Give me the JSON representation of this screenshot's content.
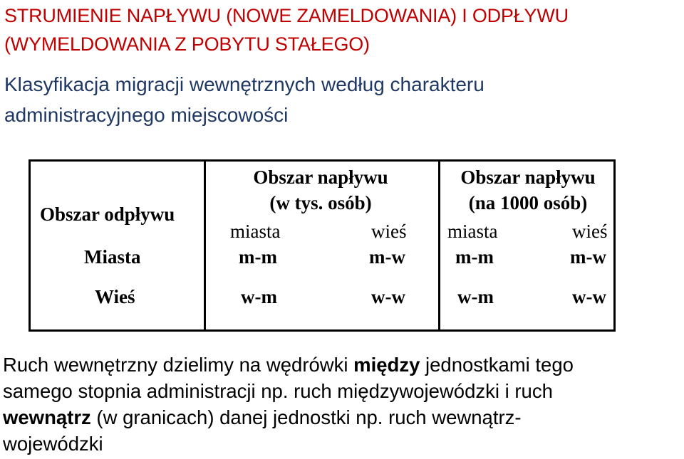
{
  "title": {
    "line1": "STRUMIENIE NAPŁYWU (NOWE ZAMELDOWANIA) I ODPŁYWU",
    "line2": "(WYMELDOWANIA Z POBYTU STAŁEGO)"
  },
  "subtitle": {
    "line1": "Klasyfikacja migracji wewnętrznych według charakteru",
    "line2": "administracyjnego miejscowości"
  },
  "table": {
    "corner_label": "Obszar odpływu",
    "group1": {
      "line1": "Obszar napływu",
      "line2": "(w tys. osób)"
    },
    "group2": {
      "line1": "Obszar napływu",
      "line2": "(na 1000 osób)"
    },
    "sub_headers": [
      "miasta",
      "wieś",
      "miasta",
      "wieś"
    ],
    "rows": [
      {
        "label": "Miasta",
        "cells": [
          "m-m",
          "m-w",
          "m-m",
          "m-w"
        ]
      },
      {
        "label": "Wieś",
        "cells": [
          "w-m",
          "w-w",
          "w-m",
          "w-w"
        ]
      }
    ]
  },
  "paragraph": {
    "p1_a": "Ruch wewnętrzny dzielimy na wędrówki ",
    "p1_b": "między",
    "p1_c": " jednostkami tego",
    "p2": "samego stopnia administracji np. ruch międzywojewódzki i ruch",
    "p3_a": "wewnątrz",
    "p3_b": " (w granicach) danej jednostki np. ruch wewnątrz-",
    "p4": "wojewódzki"
  }
}
